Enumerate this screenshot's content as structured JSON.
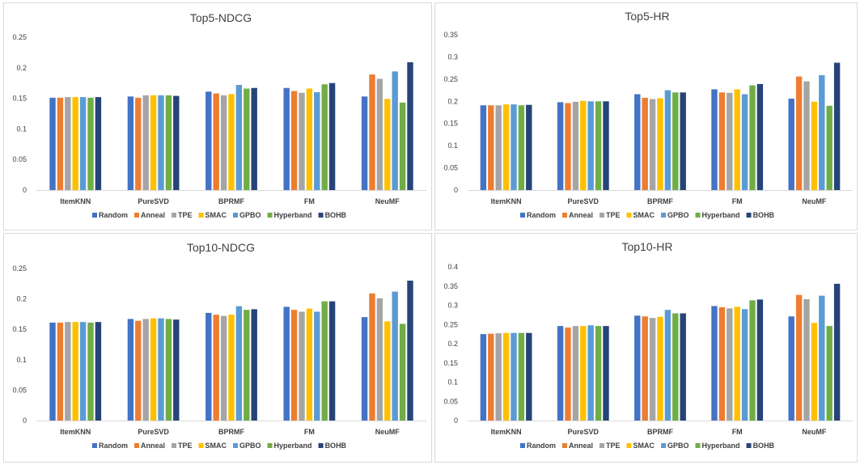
{
  "colors": {
    "Random": "#4472c4",
    "Anneal": "#ed7d31",
    "TPE": "#a5a5a5",
    "SMAC": "#ffc000",
    "GPBO": "#5b9bd5",
    "Hyperband": "#70ad47",
    "BOHB": "#264478"
  },
  "chart_data": [
    {
      "type": "bar",
      "title": "Top5-NDCG",
      "categories": [
        "ItemKNN",
        "PureSVD",
        "BPRMF",
        "FM",
        "NeuMF"
      ],
      "yticks": [
        "0",
        "0.05",
        "0.1",
        "0.15",
        "0.2",
        "0.25"
      ],
      "ylim": [
        0,
        0.25
      ],
      "legend": "bottom",
      "series": [
        {
          "name": "Random",
          "values": [
            0.151,
            0.153,
            0.161,
            0.167,
            0.153
          ]
        },
        {
          "name": "Anneal",
          "values": [
            0.151,
            0.151,
            0.158,
            0.162,
            0.189
          ]
        },
        {
          "name": "TPE",
          "values": [
            0.152,
            0.155,
            0.155,
            0.159,
            0.182
          ]
        },
        {
          "name": "SMAC",
          "values": [
            0.152,
            0.155,
            0.157,
            0.166,
            0.149
          ]
        },
        {
          "name": "GPBO",
          "values": [
            0.152,
            0.155,
            0.172,
            0.16,
            0.194
          ]
        },
        {
          "name": "Hyperband",
          "values": [
            0.151,
            0.155,
            0.166,
            0.173,
            0.143
          ]
        },
        {
          "name": "BOHB",
          "values": [
            0.152,
            0.154,
            0.167,
            0.175,
            0.209
          ]
        }
      ]
    },
    {
      "type": "bar",
      "title": "Top5-HR",
      "categories": [
        "ItemKNN",
        "PureSVD",
        "BPRMF",
        "FM",
        "NeuMF"
      ],
      "yticks": [
        "0",
        "0.05",
        "0.1",
        "0.15",
        "0.2",
        "0.25",
        "0.3",
        "0.35"
      ],
      "ylim": [
        0,
        0.35
      ],
      "legend": "bottom",
      "series": [
        {
          "name": "Random",
          "values": [
            0.191,
            0.198,
            0.216,
            0.227,
            0.206
          ]
        },
        {
          "name": "Anneal",
          "values": [
            0.191,
            0.196,
            0.208,
            0.22,
            0.256
          ]
        },
        {
          "name": "TPE",
          "values": [
            0.191,
            0.199,
            0.205,
            0.219,
            0.245
          ]
        },
        {
          "name": "SMAC",
          "values": [
            0.193,
            0.201,
            0.207,
            0.227,
            0.199
          ]
        },
        {
          "name": "GPBO",
          "values": [
            0.193,
            0.2,
            0.225,
            0.216,
            0.259
          ]
        },
        {
          "name": "Hyperband",
          "values": [
            0.191,
            0.2,
            0.22,
            0.236,
            0.19
          ]
        },
        {
          "name": "BOHB",
          "values": [
            0.192,
            0.2,
            0.22,
            0.239,
            0.287
          ]
        }
      ]
    },
    {
      "type": "bar",
      "title": "Top10-NDCG",
      "categories": [
        "ItemKNN",
        "PureSVD",
        "BPRMF",
        "FM",
        "NeuMF"
      ],
      "yticks": [
        "0",
        "0.05",
        "0.1",
        "0.15",
        "0.2",
        "0.25"
      ],
      "ylim": [
        0,
        0.25
      ],
      "legend": "bottom",
      "series": [
        {
          "name": "Random",
          "values": [
            0.161,
            0.167,
            0.177,
            0.187,
            0.17
          ]
        },
        {
          "name": "Anneal",
          "values": [
            0.161,
            0.164,
            0.174,
            0.182,
            0.209
          ]
        },
        {
          "name": "TPE",
          "values": [
            0.162,
            0.167,
            0.172,
            0.179,
            0.201
          ]
        },
        {
          "name": "SMAC",
          "values": [
            0.162,
            0.168,
            0.174,
            0.184,
            0.163
          ]
        },
        {
          "name": "GPBO",
          "values": [
            0.162,
            0.168,
            0.188,
            0.179,
            0.212
          ]
        },
        {
          "name": "Hyperband",
          "values": [
            0.161,
            0.167,
            0.182,
            0.196,
            0.159
          ]
        },
        {
          "name": "BOHB",
          "values": [
            0.162,
            0.166,
            0.183,
            0.196,
            0.23
          ]
        }
      ]
    },
    {
      "type": "bar",
      "title": "Top10-HR",
      "categories": [
        "ItemKNN",
        "PureSVD",
        "BPRMF",
        "FM",
        "NeuMF"
      ],
      "yticks": [
        "0",
        "0.05",
        "0.1",
        "0.15",
        "0.2",
        "0.25",
        "0.3",
        "0.35",
        "0.4"
      ],
      "ylim": [
        0,
        0.4
      ],
      "legend": "bottom",
      "series": [
        {
          "name": "Random",
          "values": [
            0.225,
            0.246,
            0.273,
            0.298,
            0.271
          ]
        },
        {
          "name": "Anneal",
          "values": [
            0.226,
            0.242,
            0.271,
            0.295,
            0.327
          ]
        },
        {
          "name": "TPE",
          "values": [
            0.227,
            0.246,
            0.267,
            0.292,
            0.316
          ]
        },
        {
          "name": "SMAC",
          "values": [
            0.228,
            0.246,
            0.27,
            0.296,
            0.254
          ]
        },
        {
          "name": "GPBO",
          "values": [
            0.228,
            0.248,
            0.288,
            0.29,
            0.325
          ]
        },
        {
          "name": "Hyperband",
          "values": [
            0.228,
            0.246,
            0.279,
            0.313,
            0.246
          ]
        },
        {
          "name": "BOHB",
          "values": [
            0.228,
            0.246,
            0.279,
            0.315,
            0.356
          ]
        }
      ]
    }
  ]
}
